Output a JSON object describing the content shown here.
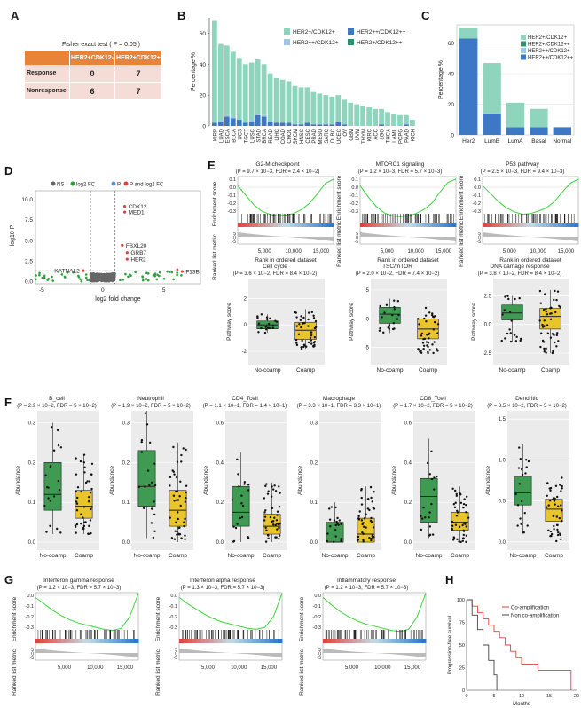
{
  "panels": {
    "A": {
      "label": "A",
      "title": "Fisher exact test ( P = 0.05 )",
      "col_headers": [
        "HER2+CDK12-",
        "HER2+CDK12+"
      ],
      "rows": [
        {
          "name": "Response",
          "values": [
            "0",
            "7"
          ]
        },
        {
          "name": "Nonresponse",
          "values": [
            "6",
            "7"
          ]
        }
      ],
      "header_color": "#e8843a",
      "cell_color": "#f6dcd6"
    },
    "B": {
      "label": "B"
    },
    "C": {
      "label": "C"
    },
    "D": {
      "label": "D"
    },
    "E": {
      "label": "E"
    },
    "F": {
      "label": "F"
    },
    "G": {
      "label": "G"
    },
    "H": {
      "label": "H"
    }
  },
  "chart_data": [
    {
      "id": "B",
      "type": "bar",
      "ylabel": "Percentage %",
      "ylim": [
        0,
        70
      ],
      "yticks": [
        "0",
        "20",
        "40",
        "60"
      ],
      "categories": [
        "KIRP",
        "LUAD",
        "ESCA",
        "BLCA",
        "UCS",
        "TGCT",
        "LUSC",
        "STAD",
        "BRCA",
        "READ",
        "LIHC",
        "COAD",
        "CHOL",
        "SKCM",
        "HNSC",
        "CESC",
        "PRAD",
        "MESO",
        "SARC",
        "DLBC",
        "UCEC",
        "OV",
        "GBM",
        "UVM",
        "THYM",
        "KIRC",
        "ACC",
        "LGG",
        "THCA",
        "LAML",
        "PCPG",
        "PAAD",
        "KICH"
      ],
      "series": [
        {
          "name": "HER2+/CDK12+",
          "color": "#8fd4bc",
          "values": [
            66,
            49,
            45,
            42,
            40,
            38,
            37,
            35,
            33,
            31,
            29,
            28,
            27,
            25,
            24,
            23,
            21,
            20,
            19,
            18,
            17,
            16,
            15,
            14,
            13,
            12,
            11,
            10,
            9,
            8,
            7,
            6,
            4
          ]
        },
        {
          "name": "HER2++/CDK12+",
          "color": "#9ec6e4",
          "values": [
            0,
            1,
            1,
            1,
            0,
            0,
            1,
            1,
            1,
            0,
            0,
            0,
            0,
            0,
            0,
            0,
            0,
            0,
            0,
            0,
            0,
            0,
            0,
            0,
            0,
            0,
            0,
            0,
            0,
            0,
            0,
            0,
            0
          ]
        },
        {
          "name": "HER2+/CDK12++",
          "color": "#2f8f6e",
          "values": [
            0,
            0,
            0,
            0,
            0,
            0,
            0,
            0,
            0,
            0,
            0,
            0,
            0,
            0,
            0,
            0,
            0,
            0,
            0,
            0,
            0,
            0,
            0,
            0,
            0,
            0,
            0,
            0,
            0,
            0,
            0,
            0,
            0
          ]
        },
        {
          "name": "HER2++/CDK12++",
          "color": "#3c78c5",
          "values": [
            2,
            3,
            6,
            5,
            4,
            2,
            3,
            7,
            6,
            3,
            2,
            2,
            2,
            1,
            1,
            2,
            1,
            1,
            1,
            1,
            3,
            1,
            0,
            0,
            0,
            0,
            0,
            1,
            0,
            0,
            0,
            1,
            0
          ]
        }
      ]
    },
    {
      "id": "C",
      "type": "bar",
      "ylabel": "Percentage %",
      "ylim": [
        0,
        72
      ],
      "yticks": [
        "0",
        "20",
        "40",
        "60"
      ],
      "categories": [
        "Her2",
        "LumB",
        "LumA",
        "Basal",
        "Normal"
      ],
      "series": [
        {
          "name": "HER2+/CDK12+",
          "color": "#8fd4bc",
          "values": [
            7,
            33,
            16,
            12,
            0
          ]
        },
        {
          "name": "HER2+/CDK12++",
          "color": "#2f8f6e",
          "values": [
            0,
            0,
            0,
            0,
            0
          ]
        },
        {
          "name": "HER2++/CDK12+",
          "color": "#9ec6e4",
          "values": [
            0,
            0,
            0,
            0,
            0
          ]
        },
        {
          "name": "HER2++/CDK12++",
          "color": "#3c78c5",
          "values": [
            63,
            14,
            5,
            5,
            5
          ]
        }
      ]
    },
    {
      "id": "D",
      "type": "scatter",
      "xlabel": "log2 fold change",
      "ylabel": "−log10 P",
      "xlim": [
        -5.5,
        8
      ],
      "ylim": [
        -0.3,
        11
      ],
      "xticks": [
        -5,
        0,
        5
      ],
      "yticks": [
        "0.0",
        "2.5",
        "5.0",
        "7.5",
        "10.0"
      ],
      "legend": [
        {
          "name": "NS",
          "color": "#666666"
        },
        {
          "name": "log2 FC",
          "color": "#2e9e3a"
        },
        {
          "name": "P",
          "color": "#5c8fd6"
        },
        {
          "name": "P and log2 FC",
          "color": "#e0403a"
        }
      ],
      "labeled_points": [
        {
          "label": "CDK12",
          "x": 1.8,
          "y": 9.1
        },
        {
          "label": "MED1",
          "x": 1.8,
          "y": 8.4
        },
        {
          "label": "FBXL20",
          "x": 1.6,
          "y": 4.4
        },
        {
          "label": "GRB7",
          "x": 2.0,
          "y": 3.5
        },
        {
          "label": "HER2",
          "x": 2.0,
          "y": 2.7
        },
        {
          "label": "KATNAL2",
          "x": -1.6,
          "y": 1.3
        },
        {
          "label": "F13B",
          "x": 6.5,
          "y": 1.2
        }
      ]
    },
    {
      "id": "E-gsea",
      "type": "line",
      "ylabel_top": "Enrichment score",
      "ylabel_bottom": "Ranked list metric",
      "xlabel": "Rank in ordered dataset",
      "xticks": [
        "5,000",
        "10,000",
        "15,000"
      ],
      "yticks": [
        "0.1",
        "0.0",
        "-0.1",
        "-0.2",
        "-0.3"
      ],
      "bottom_yticks": [
        "5",
        "0",
        "-5"
      ],
      "series": [
        {
          "name": "G2-M checkpoint",
          "stats": "(P = 9.7 × 10−3, FDR = 2.4 × 10−2)",
          "values": [
            0.02,
            -0.1,
            -0.22,
            -0.3,
            -0.34,
            -0.36,
            -0.35,
            -0.33,
            -0.28,
            -0.2,
            -0.08,
            0.05,
            0.1
          ]
        },
        {
          "name": "MTORC1 signaling",
          "stats": "(P = 1.2 × 10−3, FDR = 5.7 × 10−3)",
          "values": [
            0.02,
            -0.12,
            -0.24,
            -0.32,
            -0.36,
            -0.37,
            -0.36,
            -0.33,
            -0.28,
            -0.2,
            -0.06,
            0.06,
            0.1
          ]
        },
        {
          "name": "P53 pathway",
          "stats": "(P = 2.5 × 10−3, FDR = 9.4 × 10−3)",
          "values": [
            0.02,
            -0.08,
            -0.18,
            -0.26,
            -0.31,
            -0.34,
            -0.33,
            -0.3,
            -0.26,
            -0.18,
            -0.06,
            0.05,
            0.1
          ]
        }
      ]
    },
    {
      "id": "E-box",
      "type": "box",
      "ylabel": "Pathway score",
      "groups": [
        "No-coamp",
        "Coamp"
      ],
      "group_colors": [
        "#3f9a52",
        "#e8c52a"
      ],
      "series": [
        {
          "name": "Cell cycle",
          "stats": "(P = 3.6 × 10−2, FDR = 8.4 × 10−2)",
          "yticks": [
            "-2",
            "0",
            "2"
          ],
          "ylim": [
            -3,
            3.5
          ],
          "q": [
            [
              -0.6,
              -0.3,
              0,
              0.3,
              0.8
            ],
            [
              -1.8,
              -1.1,
              -0.4,
              0.2,
              1.2
            ]
          ]
        },
        {
          "name": "TSC/mTOR",
          "stats": "(P = 2.0 × 10−2, FDR = 7.4 × 10−2)",
          "yticks": [
            "-5",
            "0",
            "5"
          ],
          "ylim": [
            -8,
            7
          ],
          "q": [
            [
              -2.5,
              -0.8,
              0.8,
              2,
              3.5
            ],
            [
              -6,
              -3.5,
              -1.8,
              0,
              2.5
            ]
          ]
        },
        {
          "name": "DNA damage response",
          "stats": "(P = 3.8 × 10−2, FDR = 8.4 × 10−2)",
          "yticks": [
            "-2.5",
            "0.0",
            "2.5"
          ],
          "ylim": [
            -3.5,
            4
          ],
          "q": [
            [
              -1.5,
              0.4,
              1,
              1.7,
              2.5
            ],
            [
              -2.5,
              -0.4,
              0.7,
              1.4,
              3
            ]
          ]
        }
      ]
    },
    {
      "id": "F",
      "type": "box",
      "ylabel": "Abundance",
      "groups": [
        "No-coamp",
        "Coamp"
      ],
      "group_colors": [
        "#3f9a52",
        "#e8c52a"
      ],
      "series": [
        {
          "name": "B_cell",
          "stats": "(P = 2.9 × 10−2, FDR = 5 × 10−2)",
          "yticks": [
            "0.0",
            "0.1",
            "0.2",
            "0.3"
          ],
          "ylim": [
            -0.02,
            0.33
          ],
          "q": [
            [
              0.02,
              0.08,
              0.12,
              0.2,
              0.3
            ],
            [
              0.02,
              0.06,
              0.09,
              0.13,
              0.22
            ]
          ]
        },
        {
          "name": "Neutrophil",
          "stats": "(P = 1.9 × 10−2, FDR = 5 × 10−2)",
          "yticks": [
            "0.0",
            "0.1",
            "0.2",
            "0.3"
          ],
          "ylim": [
            -0.02,
            0.33
          ],
          "q": [
            [
              0.01,
              0.09,
              0.14,
              0.23,
              0.33
            ],
            [
              0,
              0.04,
              0.08,
              0.13,
              0.25
            ]
          ]
        },
        {
          "name": "CD4_Tcell",
          "stats": "(P = 1.1 × 10−1, FDR = 1.4 × 10−1)",
          "yticks": [
            "0.0",
            "0.2",
            "0.4",
            "0.6"
          ],
          "ylim": [
            -0.04,
            0.66
          ],
          "q": [
            [
              0,
              0.08,
              0.15,
              0.28,
              0.45
            ],
            [
              0,
              0.04,
              0.08,
              0.14,
              0.3
            ]
          ]
        },
        {
          "name": "Macrophage",
          "stats": "(P = 3.3 × 10−1, FDR = 3.3 × 10−1)",
          "yticks": [
            "0.0",
            "0.1",
            "0.2",
            "0.3"
          ],
          "ylim": [
            -0.02,
            0.33
          ],
          "q": [
            [
              0,
              0,
              0,
              0.05,
              0.1
            ],
            [
              0,
              0,
              0.02,
              0.06,
              0.14
            ]
          ]
        },
        {
          "name": "CD8_Tcell",
          "stats": "(P = 1.7 × 10−2, FDR = 5 × 10−2)",
          "yticks": [
            "0.0",
            "0.2",
            "0.4",
            "0.6"
          ],
          "ylim": [
            -0.04,
            0.66
          ],
          "q": [
            [
              0.02,
              0.1,
              0.23,
              0.32,
              0.52
            ],
            [
              0,
              0.06,
              0.1,
              0.15,
              0.28
            ]
          ]
        },
        {
          "name": "Dendritic",
          "stats": "(P = 3.5 × 10−2, FDR = 5 × 10−2)",
          "yticks": [
            "0.0",
            "0.5",
            "1.0",
            "1.5"
          ],
          "ylim": [
            -0.1,
            1.6
          ],
          "q": [
            [
              0.1,
              0.45,
              0.6,
              0.8,
              1.2
            ],
            [
              0,
              0.25,
              0.4,
              0.52,
              0.8
            ]
          ]
        }
      ]
    },
    {
      "id": "G",
      "type": "line",
      "ylabel_top": "Enrichment score",
      "ylabel_bottom": "Ranked list metric",
      "xticks": [
        "5,000",
        "10,000",
        "15,000"
      ],
      "yticks": [
        "0.0",
        "-0.1",
        "-0.2",
        "-0.3"
      ],
      "bottom_yticks": [
        "5",
        "0",
        "-5"
      ],
      "series": [
        {
          "name": "Interferon gamma response",
          "stats": "(P = 1.2 × 10−3, FDR = 5.7 × 10−3)",
          "values": [
            -0.02,
            -0.08,
            -0.14,
            -0.19,
            -0.23,
            -0.26,
            -0.28,
            -0.3,
            -0.32,
            -0.33,
            -0.31,
            -0.2,
            0.02
          ]
        },
        {
          "name": "Interferon alpha response",
          "stats": "(P = 1.3 × 10−3, FDR = 5.7 × 10−3)",
          "values": [
            -0.02,
            -0.08,
            -0.13,
            -0.18,
            -0.22,
            -0.25,
            -0.27,
            -0.29,
            -0.31,
            -0.32,
            -0.3,
            -0.2,
            0.02
          ]
        },
        {
          "name": "Inflammatory response",
          "stats": "(P = 1.2 × 10−3, FDR = 5.7 × 10−3)",
          "values": [
            -0.02,
            -0.09,
            -0.15,
            -0.2,
            -0.24,
            -0.27,
            -0.29,
            -0.31,
            -0.33,
            -0.34,
            -0.32,
            -0.2,
            0.02
          ]
        }
      ]
    },
    {
      "id": "H",
      "type": "line",
      "xlabel": "Months",
      "ylabel": "Progression-free survival",
      "xticks": [
        "0",
        "5",
        "10",
        "15",
        "20"
      ],
      "yticks": [
        "0",
        "25",
        "50",
        "75",
        "100"
      ],
      "xlim": [
        0,
        20
      ],
      "ylim": [
        0,
        100
      ],
      "series": [
        {
          "name": "Co-amplification",
          "color": "#e0403a",
          "x": [
            0,
            1,
            2,
            3,
            4,
            5,
            6,
            7,
            8,
            9,
            10,
            13,
            15,
            17,
            19
          ],
          "y": [
            100,
            93,
            86,
            79,
            72,
            65,
            58,
            50,
            43,
            36,
            29,
            22,
            22,
            22,
            0
          ]
        },
        {
          "name": "Non co-amplification",
          "color": "#444444",
          "x": [
            0,
            1,
            2,
            3,
            4,
            5,
            5.5
          ],
          "y": [
            100,
            83,
            67,
            50,
            33,
            17,
            0
          ]
        }
      ]
    }
  ]
}
